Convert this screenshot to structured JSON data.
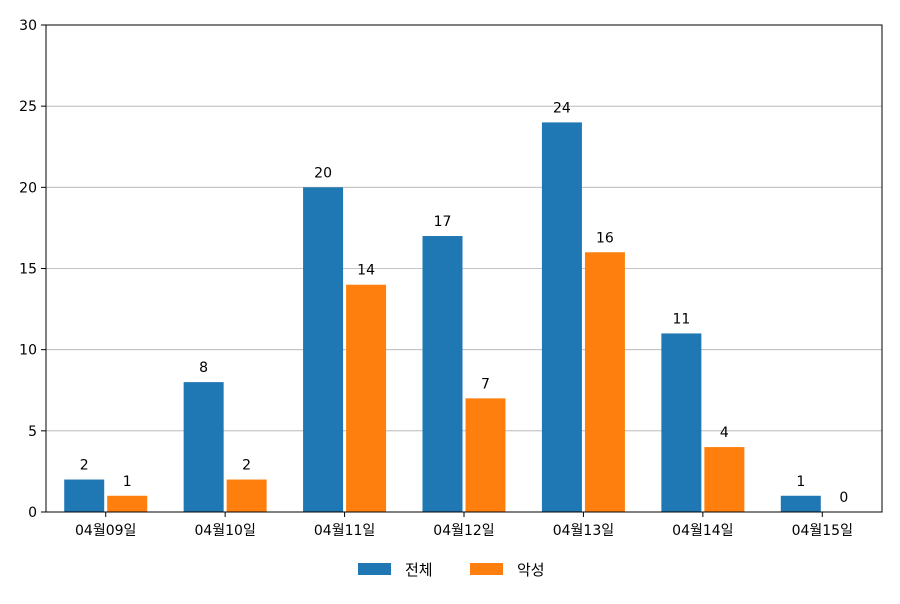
{
  "chart_data": {
    "type": "bar",
    "categories": [
      "04월09일",
      "04월10일",
      "04월11일",
      "04월12일",
      "04월13일",
      "04월14일",
      "04월15일"
    ],
    "series": [
      {
        "name": "전체",
        "values": [
          2,
          8,
          20,
          17,
          24,
          11,
          1
        ],
        "color": "#1f77b4"
      },
      {
        "name": "악성",
        "values": [
          1,
          2,
          14,
          7,
          16,
          4,
          0
        ],
        "color": "#ff7f0e"
      }
    ],
    "ylim": [
      0,
      30
    ],
    "yticks": [
      0,
      5,
      10,
      15,
      20,
      25,
      30
    ],
    "grid": "y",
    "legend_position": "bottom-center",
    "show_data_labels": true
  }
}
